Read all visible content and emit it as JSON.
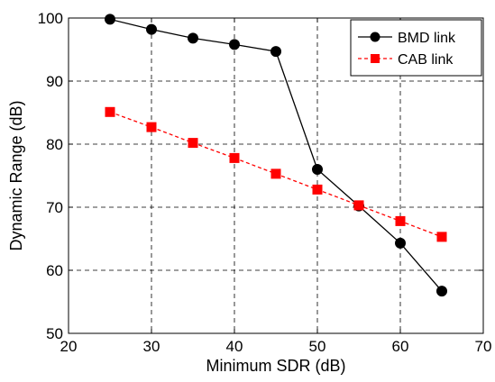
{
  "chart_data": {
    "type": "line",
    "title": "",
    "xlabel": "Minimum SDR (dB)",
    "ylabel": "Dynamic Range (dB)",
    "xlim": [
      20,
      70
    ],
    "ylim": [
      50,
      100
    ],
    "x_ticks": [
      20,
      30,
      40,
      50,
      60,
      70
    ],
    "y_ticks": [
      50,
      60,
      70,
      80,
      90,
      100
    ],
    "grid": true,
    "grid_style": "dashed",
    "legend_position": "top-right",
    "series": [
      {
        "name": "BMD link",
        "color": "#000000",
        "line_style": "solid",
        "marker": "circle",
        "x": [
          25,
          30,
          35,
          40,
          45,
          50,
          55,
          60,
          65
        ],
        "y": [
          99.8,
          98.2,
          96.8,
          95.8,
          94.7,
          76.0,
          70.2,
          64.3,
          56.7
        ]
      },
      {
        "name": "CAB link",
        "color": "#ff0000",
        "line_style": "dashed",
        "marker": "square",
        "x": [
          25,
          30,
          35,
          40,
          45,
          50,
          55,
          60,
          65
        ],
        "y": [
          85.1,
          82.7,
          80.2,
          77.8,
          75.3,
          72.8,
          70.3,
          67.8,
          65.3
        ]
      }
    ]
  }
}
